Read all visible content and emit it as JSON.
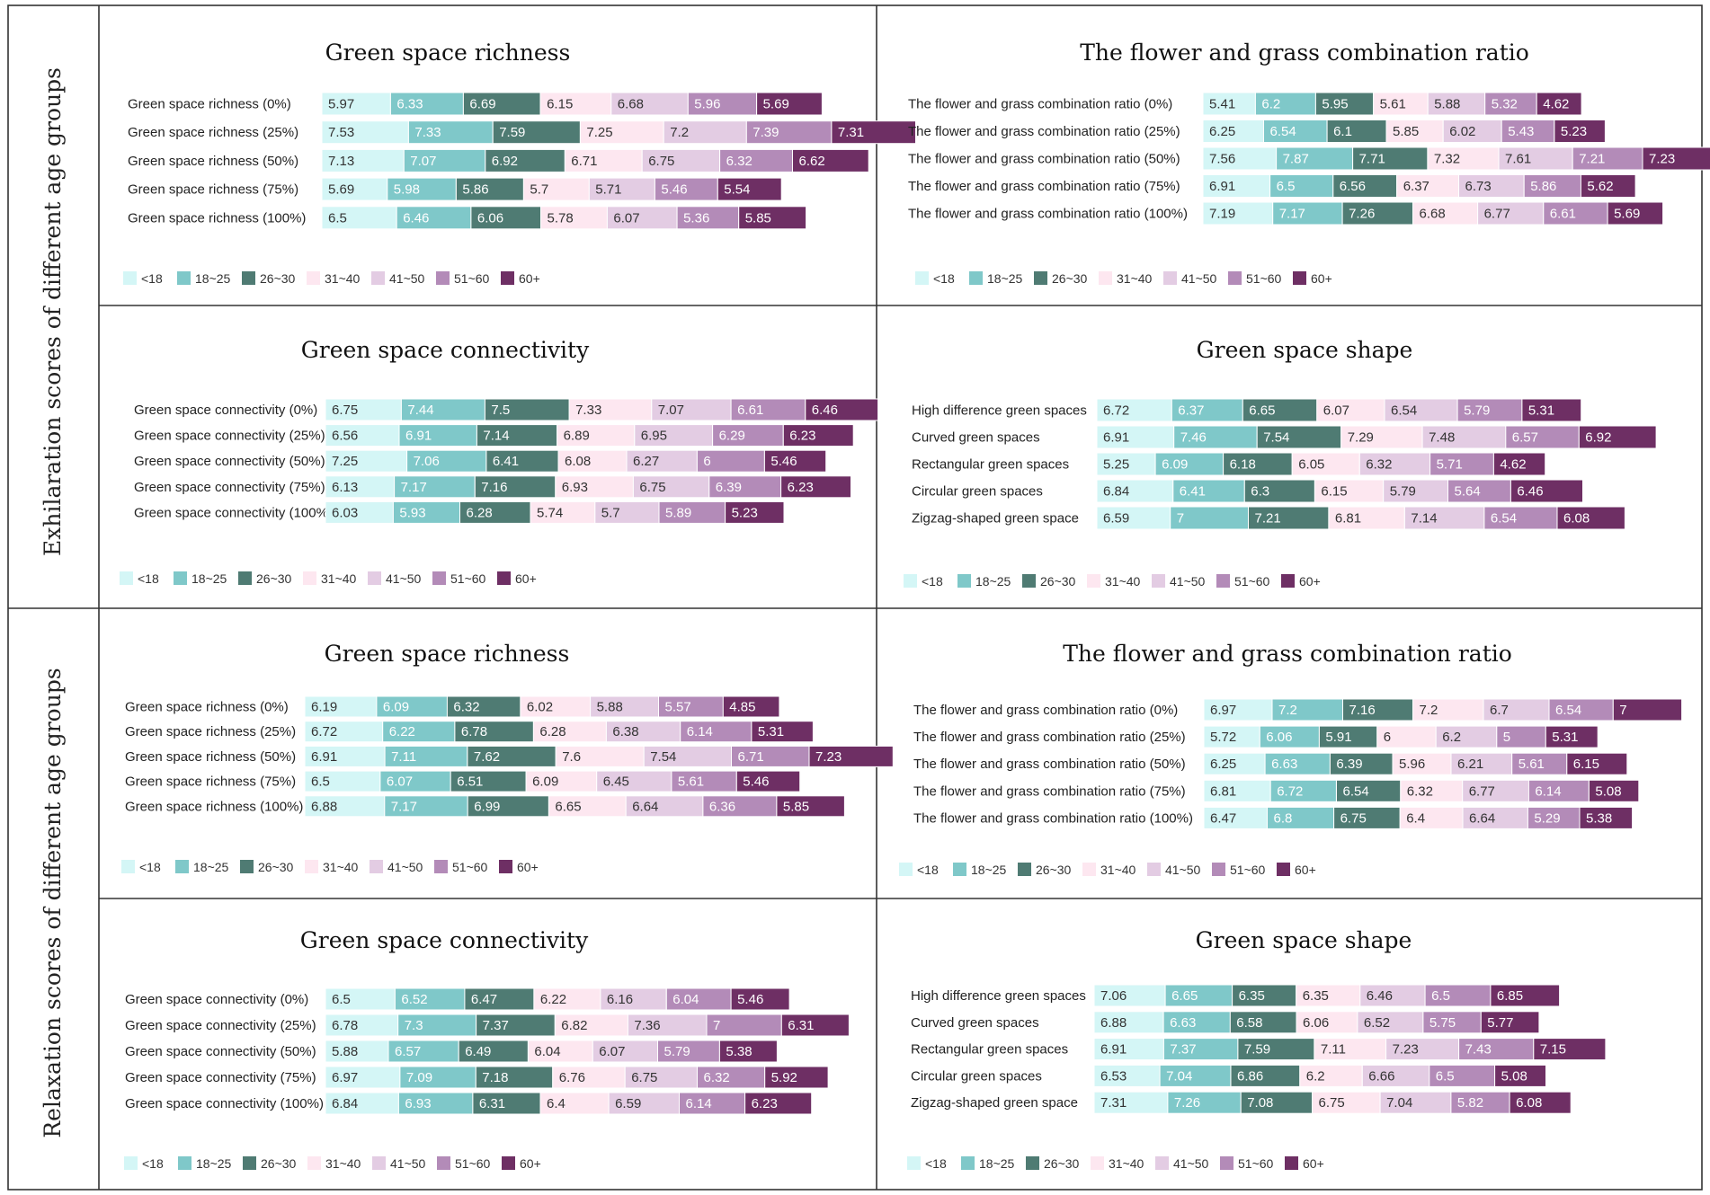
{
  "figure": {
    "section_labels": [
      "Exhilaration scores of different age groups",
      "Relaxation scores of different age groups"
    ],
    "legend": [
      "<18",
      "18~25",
      "26~30",
      "31~40",
      "41~50",
      "51~60",
      "60+"
    ],
    "colors": [
      "#d4f6f6",
      "#7fc8c9",
      "#4f7b73",
      "#fde7f0",
      "#e3cce3",
      "#b38bb8",
      "#6e2f64"
    ],
    "text_colors": [
      "#333333",
      "#ffffff",
      "#ffffff",
      "#333333",
      "#333333",
      "#ffffff",
      "#ffffff"
    ]
  },
  "chart_data": [
    {
      "type": "bar",
      "stacked": true,
      "orientation": "horizontal",
      "section": "Exhilaration",
      "title": "Green space richness",
      "categories": [
        "Green space richness (0%)",
        "Green space richness (25%)",
        "Green space richness (50%)",
        "Green space richness (75%)",
        "Green space richness (100%)"
      ],
      "series": [
        {
          "name": "<18",
          "values": [
            5.97,
            7.53,
            7.13,
            5.69,
            6.5
          ]
        },
        {
          "name": "18~25",
          "values": [
            6.33,
            7.33,
            7.07,
            5.98,
            6.46
          ]
        },
        {
          "name": "26~30",
          "values": [
            6.69,
            7.59,
            6.92,
            5.86,
            6.06
          ]
        },
        {
          "name": "31~40",
          "values": [
            6.15,
            7.25,
            6.71,
            5.7,
            5.78
          ]
        },
        {
          "name": "41~50",
          "values": [
            6.68,
            7.2,
            6.75,
            5.71,
            6.07
          ]
        },
        {
          "name": "51~60",
          "values": [
            5.96,
            7.39,
            6.32,
            5.46,
            5.36
          ]
        },
        {
          "name": "60+",
          "values": [
            5.69,
            7.31,
            6.62,
            5.54,
            5.85
          ]
        }
      ]
    },
    {
      "type": "bar",
      "stacked": true,
      "orientation": "horizontal",
      "section": "Exhilaration",
      "title": "The flower and grass combination ratio",
      "categories": [
        "The flower and grass combination ratio (0%)",
        "The flower and grass combination ratio (25%)",
        "The flower and grass combination ratio (50%)",
        "The flower and grass combination ratio (75%)",
        "The flower and grass combination ratio (100%)"
      ],
      "series": [
        {
          "name": "<18",
          "values": [
            5.41,
            6.25,
            7.56,
            6.91,
            7.19
          ]
        },
        {
          "name": "18~25",
          "values": [
            6.2,
            6.54,
            7.87,
            6.5,
            7.17
          ]
        },
        {
          "name": "26~30",
          "values": [
            5.95,
            6.1,
            7.71,
            6.56,
            7.26
          ]
        },
        {
          "name": "31~40",
          "values": [
            5.61,
            5.85,
            7.32,
            6.37,
            6.68
          ]
        },
        {
          "name": "41~50",
          "values": [
            5.88,
            6.02,
            7.61,
            6.73,
            6.77
          ]
        },
        {
          "name": "51~60",
          "values": [
            5.32,
            5.43,
            7.21,
            5.86,
            6.61
          ]
        },
        {
          "name": "60+",
          "values": [
            4.62,
            5.23,
            7.23,
            5.62,
            5.69
          ]
        }
      ]
    },
    {
      "type": "bar",
      "stacked": true,
      "orientation": "horizontal",
      "section": "Exhilaration",
      "title": "Green space connectivity",
      "categories": [
        "Green space connectivity (0%)",
        "Green space connectivity (25%)",
        "Green space connectivity (50%)",
        "Green space connectivity (75%)",
        "Green space connectivity (100%)"
      ],
      "series": [
        {
          "name": "<18",
          "values": [
            6.75,
            6.56,
            7.25,
            6.13,
            6.03
          ]
        },
        {
          "name": "18~25",
          "values": [
            7.44,
            6.91,
            7.06,
            7.17,
            5.93
          ]
        },
        {
          "name": "26~30",
          "values": [
            7.5,
            7.14,
            6.41,
            7.16,
            6.28
          ]
        },
        {
          "name": "31~40",
          "values": [
            7.33,
            6.89,
            6.08,
            6.93,
            5.74
          ]
        },
        {
          "name": "41~50",
          "values": [
            7.07,
            6.95,
            6.27,
            6.75,
            5.7
          ]
        },
        {
          "name": "51~60",
          "values": [
            6.61,
            6.29,
            6,
            6.39,
            5.89
          ]
        },
        {
          "name": "60+",
          "values": [
            6.46,
            6.23,
            5.46,
            6.23,
            5.23
          ]
        }
      ]
    },
    {
      "type": "bar",
      "stacked": true,
      "orientation": "horizontal",
      "section": "Exhilaration",
      "title": "Green space shape",
      "categories": [
        "High difference green spaces",
        "Curved green spaces",
        "Rectangular green spaces",
        "Circular green spaces",
        "Zigzag-shaped green space"
      ],
      "series": [
        {
          "name": "<18",
          "values": [
            6.72,
            6.91,
            5.25,
            6.84,
            6.59
          ]
        },
        {
          "name": "18~25",
          "values": [
            6.37,
            7.46,
            6.09,
            6.41,
            7
          ]
        },
        {
          "name": "26~30",
          "values": [
            6.65,
            7.54,
            6.18,
            6.3,
            7.21
          ]
        },
        {
          "name": "31~40",
          "values": [
            6.07,
            7.29,
            6.05,
            6.15,
            6.81
          ]
        },
        {
          "name": "41~50",
          "values": [
            6.54,
            7.48,
            6.32,
            5.79,
            7.14
          ]
        },
        {
          "name": "51~60",
          "values": [
            5.79,
            6.57,
            5.71,
            5.64,
            6.54
          ]
        },
        {
          "name": "60+",
          "values": [
            5.31,
            6.92,
            4.62,
            6.46,
            6.08
          ]
        }
      ]
    },
    {
      "type": "bar",
      "stacked": true,
      "orientation": "horizontal",
      "section": "Relaxation",
      "title": "Green space richness",
      "categories": [
        "Green space richness (0%)",
        "Green space richness (25%)",
        "Green space richness (50%)",
        "Green space richness (75%)",
        "Green space richness (100%)"
      ],
      "series": [
        {
          "name": "<18",
          "values": [
            6.19,
            6.72,
            6.91,
            6.5,
            6.88
          ]
        },
        {
          "name": "18~25",
          "values": [
            6.09,
            6.22,
            7.11,
            6.07,
            7.17
          ]
        },
        {
          "name": "26~30",
          "values": [
            6.32,
            6.78,
            7.62,
            6.51,
            6.99
          ]
        },
        {
          "name": "31~40",
          "values": [
            6.02,
            6.28,
            7.6,
            6.09,
            6.65
          ]
        },
        {
          "name": "41~50",
          "values": [
            5.88,
            6.38,
            7.54,
            6.45,
            6.64
          ]
        },
        {
          "name": "51~60",
          "values": [
            5.57,
            6.14,
            6.71,
            5.61,
            6.36
          ]
        },
        {
          "name": "60+",
          "values": [
            4.85,
            5.31,
            7.23,
            5.46,
            5.85
          ]
        }
      ]
    },
    {
      "type": "bar",
      "stacked": true,
      "orientation": "horizontal",
      "section": "Relaxation",
      "title": "The flower and grass combination ratio",
      "categories": [
        "The flower and grass combination ratio (0%)",
        "The flower and grass combination ratio (25%)",
        "The flower and grass combination ratio (50%)",
        "The flower and grass combination ratio (75%)",
        "The flower and grass combination ratio (100%)"
      ],
      "series": [
        {
          "name": "<18",
          "values": [
            6.97,
            5.72,
            6.25,
            6.81,
            6.47
          ]
        },
        {
          "name": "18~25",
          "values": [
            7.2,
            6.06,
            6.63,
            6.72,
            6.8
          ]
        },
        {
          "name": "26~30",
          "values": [
            7.16,
            5.91,
            6.39,
            6.54,
            6.75
          ]
        },
        {
          "name": "31~40",
          "values": [
            7.2,
            6,
            5.96,
            6.32,
            6.4
          ]
        },
        {
          "name": "41~50",
          "values": [
            6.7,
            6.2,
            6.21,
            6.77,
            6.64
          ]
        },
        {
          "name": "51~60",
          "values": [
            6.54,
            5,
            5.61,
            6.14,
            5.29
          ]
        },
        {
          "name": "60+",
          "values": [
            7,
            5.31,
            6.15,
            5.08,
            5.38
          ]
        }
      ]
    },
    {
      "type": "bar",
      "stacked": true,
      "orientation": "horizontal",
      "section": "Relaxation",
      "title": "Green space connectivity",
      "categories": [
        "Green space connectivity (0%)",
        "Green space connectivity (25%)",
        "Green space connectivity (50%)",
        "Green space connectivity (75%)",
        "Green space connectivity (100%)"
      ],
      "series": [
        {
          "name": "<18",
          "values": [
            6.5,
            6.78,
            5.88,
            6.97,
            6.84
          ]
        },
        {
          "name": "18~25",
          "values": [
            6.52,
            7.3,
            6.57,
            7.09,
            6.93
          ]
        },
        {
          "name": "26~30",
          "values": [
            6.47,
            7.37,
            6.49,
            7.18,
            6.31
          ]
        },
        {
          "name": "31~40",
          "values": [
            6.22,
            6.82,
            6.04,
            6.76,
            6.4
          ]
        },
        {
          "name": "41~50",
          "values": [
            6.16,
            7.36,
            6.07,
            6.75,
            6.59
          ]
        },
        {
          "name": "51~60",
          "values": [
            6.04,
            7,
            5.79,
            6.32,
            6.14
          ]
        },
        {
          "name": "60+",
          "values": [
            5.46,
            6.31,
            5.38,
            5.92,
            6.23
          ]
        }
      ]
    },
    {
      "type": "bar",
      "stacked": true,
      "orientation": "horizontal",
      "section": "Relaxation",
      "title": "Green space shape",
      "categories": [
        "High difference green spaces",
        "Curved green spaces",
        "Rectangular green spaces",
        "Circular green spaces",
        "Zigzag-shaped green space"
      ],
      "series": [
        {
          "name": "<18",
          "values": [
            7.06,
            6.88,
            6.91,
            6.53,
            7.31
          ]
        },
        {
          "name": "18~25",
          "values": [
            6.65,
            6.63,
            7.37,
            7.04,
            7.26
          ]
        },
        {
          "name": "26~30",
          "values": [
            6.35,
            6.58,
            7.59,
            6.86,
            7.08
          ]
        },
        {
          "name": "31~40",
          "values": [
            6.35,
            6.06,
            7.11,
            6.2,
            6.75
          ]
        },
        {
          "name": "41~50",
          "values": [
            6.46,
            6.52,
            7.23,
            6.66,
            7.04
          ]
        },
        {
          "name": "51~60",
          "values": [
            6.5,
            5.75,
            7.43,
            6.5,
            5.82
          ]
        },
        {
          "name": "60+",
          "values": [
            6.85,
            5.77,
            7.15,
            5.08,
            6.08
          ]
        }
      ]
    }
  ]
}
